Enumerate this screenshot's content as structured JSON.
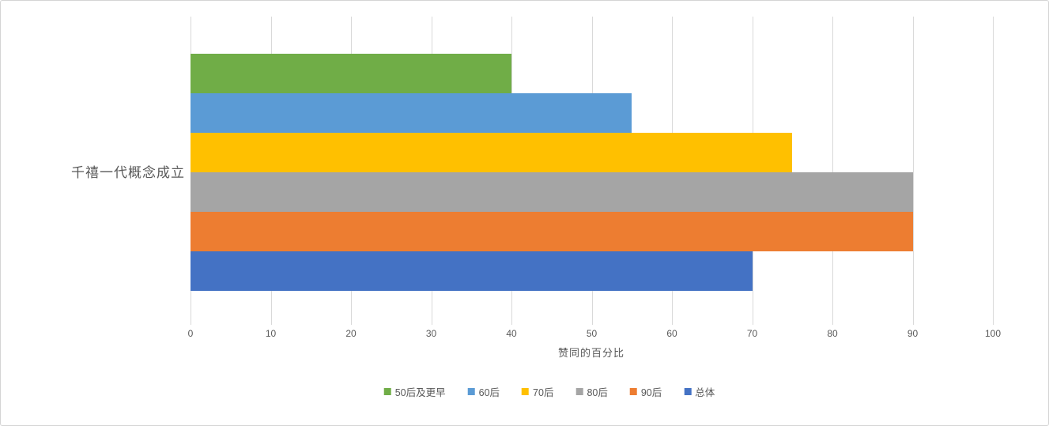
{
  "chart_data": {
    "type": "bar",
    "orientation": "horizontal",
    "title": "",
    "category_label": "千禧一代概念成立",
    "xlabel": "赞同的百分比",
    "ylabel": "",
    "xlim": [
      0,
      100
    ],
    "xticks": [
      0,
      10,
      20,
      30,
      40,
      50,
      60,
      70,
      80,
      90,
      100
    ],
    "grid": true,
    "legend_position": "bottom",
    "categories": [
      "千禧一代概念成立"
    ],
    "series": [
      {
        "name": "50后及更早",
        "values": [
          40
        ],
        "color": "#70AD47"
      },
      {
        "name": "60后",
        "values": [
          55
        ],
        "color": "#5B9BD5"
      },
      {
        "name": "70后",
        "values": [
          75
        ],
        "color": "#FFC000"
      },
      {
        "name": "80后",
        "values": [
          90
        ],
        "color": "#A5A5A5"
      },
      {
        "name": "90后",
        "values": [
          90
        ],
        "color": "#ED7D31"
      },
      {
        "name": "总体",
        "values": [
          70
        ],
        "color": "#4472C4"
      }
    ],
    "colors": {
      "gridline": "#D9D9D9",
      "axis_text": "#595959",
      "chart_border": "#D4D4D4",
      "background": "#FFFFFF"
    }
  }
}
